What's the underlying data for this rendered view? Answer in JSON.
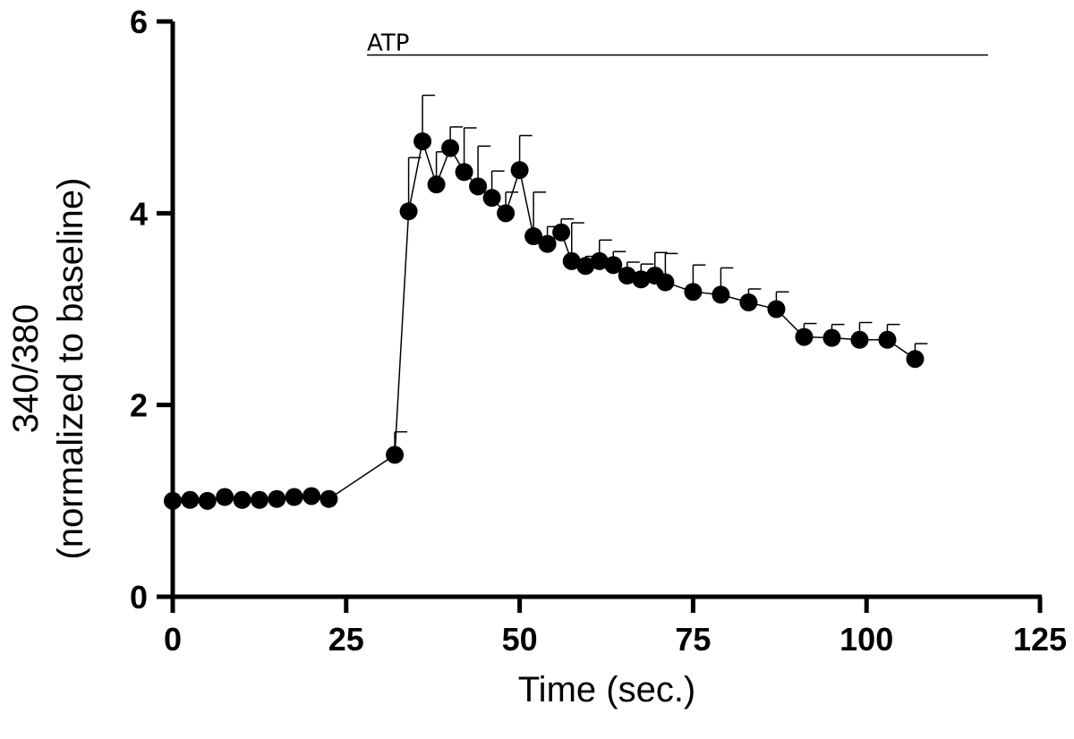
{
  "chart_data": {
    "type": "scatter",
    "title": "",
    "xlabel": "Time (sec.)",
    "ylabel_line1": "340/380",
    "ylabel_line2": "(normalized to baseline)",
    "xlim": [
      0,
      125
    ],
    "ylim": [
      0,
      6
    ],
    "xticks": [
      0,
      25,
      50,
      75,
      100,
      125
    ],
    "yticks": [
      0,
      2,
      4,
      6
    ],
    "grid": false,
    "annotation": {
      "text": "ATP",
      "x_start": 28,
      "x_end": 117.5,
      "y": 5.65
    },
    "series": [
      {
        "name": "340/380",
        "x": [
          0,
          2.5,
          5,
          7.5,
          10,
          12.5,
          15,
          17.5,
          20,
          22.5,
          32,
          34,
          36,
          38,
          40,
          42,
          44,
          46,
          48,
          50,
          52,
          54,
          56,
          57.5,
          59.5,
          61.5,
          63.5,
          65.5,
          67.5,
          69.5,
          71,
          75,
          79,
          83,
          87,
          91,
          95,
          99,
          103,
          107
        ],
        "y": [
          1.0,
          1.01,
          1.0,
          1.04,
          1.01,
          1.01,
          1.02,
          1.04,
          1.05,
          1.02,
          1.48,
          4.02,
          4.75,
          4.3,
          4.68,
          4.43,
          4.28,
          4.16,
          4.0,
          4.45,
          3.76,
          3.68,
          3.8,
          3.5,
          3.45,
          3.5,
          3.46,
          3.35,
          3.31,
          3.35,
          3.28,
          3.18,
          3.15,
          3.07,
          3.0,
          2.71,
          2.7,
          2.68,
          2.68,
          2.48
        ],
        "error": [
          0,
          0,
          0,
          0,
          0,
          0,
          0,
          0,
          0,
          0,
          0.24,
          0.56,
          0.48,
          0.34,
          0.22,
          0.46,
          0.42,
          0.28,
          0.22,
          0.36,
          0.46,
          0.18,
          0.14,
          0.4,
          0.1,
          0.22,
          0.14,
          0.14,
          0.16,
          0.24,
          0.3,
          0.28,
          0.28,
          0.14,
          0.18,
          0.14,
          0.14,
          0.18,
          0.16,
          0.16
        ]
      }
    ]
  }
}
